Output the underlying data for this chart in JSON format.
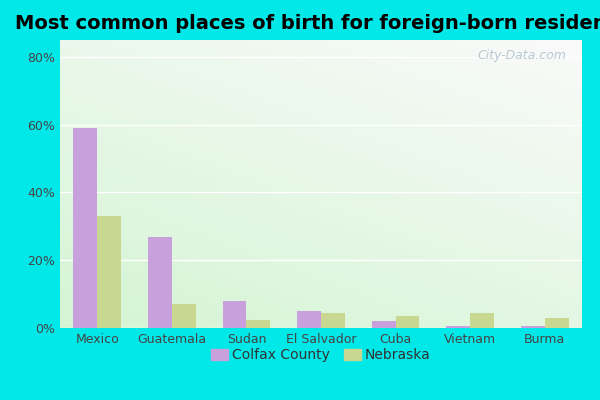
{
  "title": "Most common places of birth for foreign-born residents",
  "categories": [
    "Mexico",
    "Guatemala",
    "Sudan",
    "El Salvador",
    "Cuba",
    "Vietnam",
    "Burma"
  ],
  "colfax_values": [
    59,
    27,
    8,
    5,
    2,
    0.5,
    0.5
  ],
  "nebraska_values": [
    33,
    7,
    2.5,
    4.5,
    3.5,
    4.5,
    3
  ],
  "colfax_color": "#c8a0dc",
  "nebraska_color": "#c8d890",
  "background_color": "#00e8e8",
  "plot_bg_topleft": "#d8f0d0",
  "plot_bg_topright": "#f0f8ee",
  "plot_bg_botleft": "#c8e8c0",
  "plot_bg_botright": "#e8f4e4",
  "ylabel_ticks": [
    "0%",
    "20%",
    "40%",
    "60%",
    "80%"
  ],
  "ytick_values": [
    0,
    20,
    40,
    60,
    80
  ],
  "ylim": [
    0,
    85
  ],
  "bar_width": 0.32,
  "legend_colfax": "Colfax County",
  "legend_nebraska": "Nebraska",
  "title_fontsize": 14,
  "tick_fontsize": 9,
  "legend_fontsize": 10,
  "watermark_text": "City-Data.com"
}
